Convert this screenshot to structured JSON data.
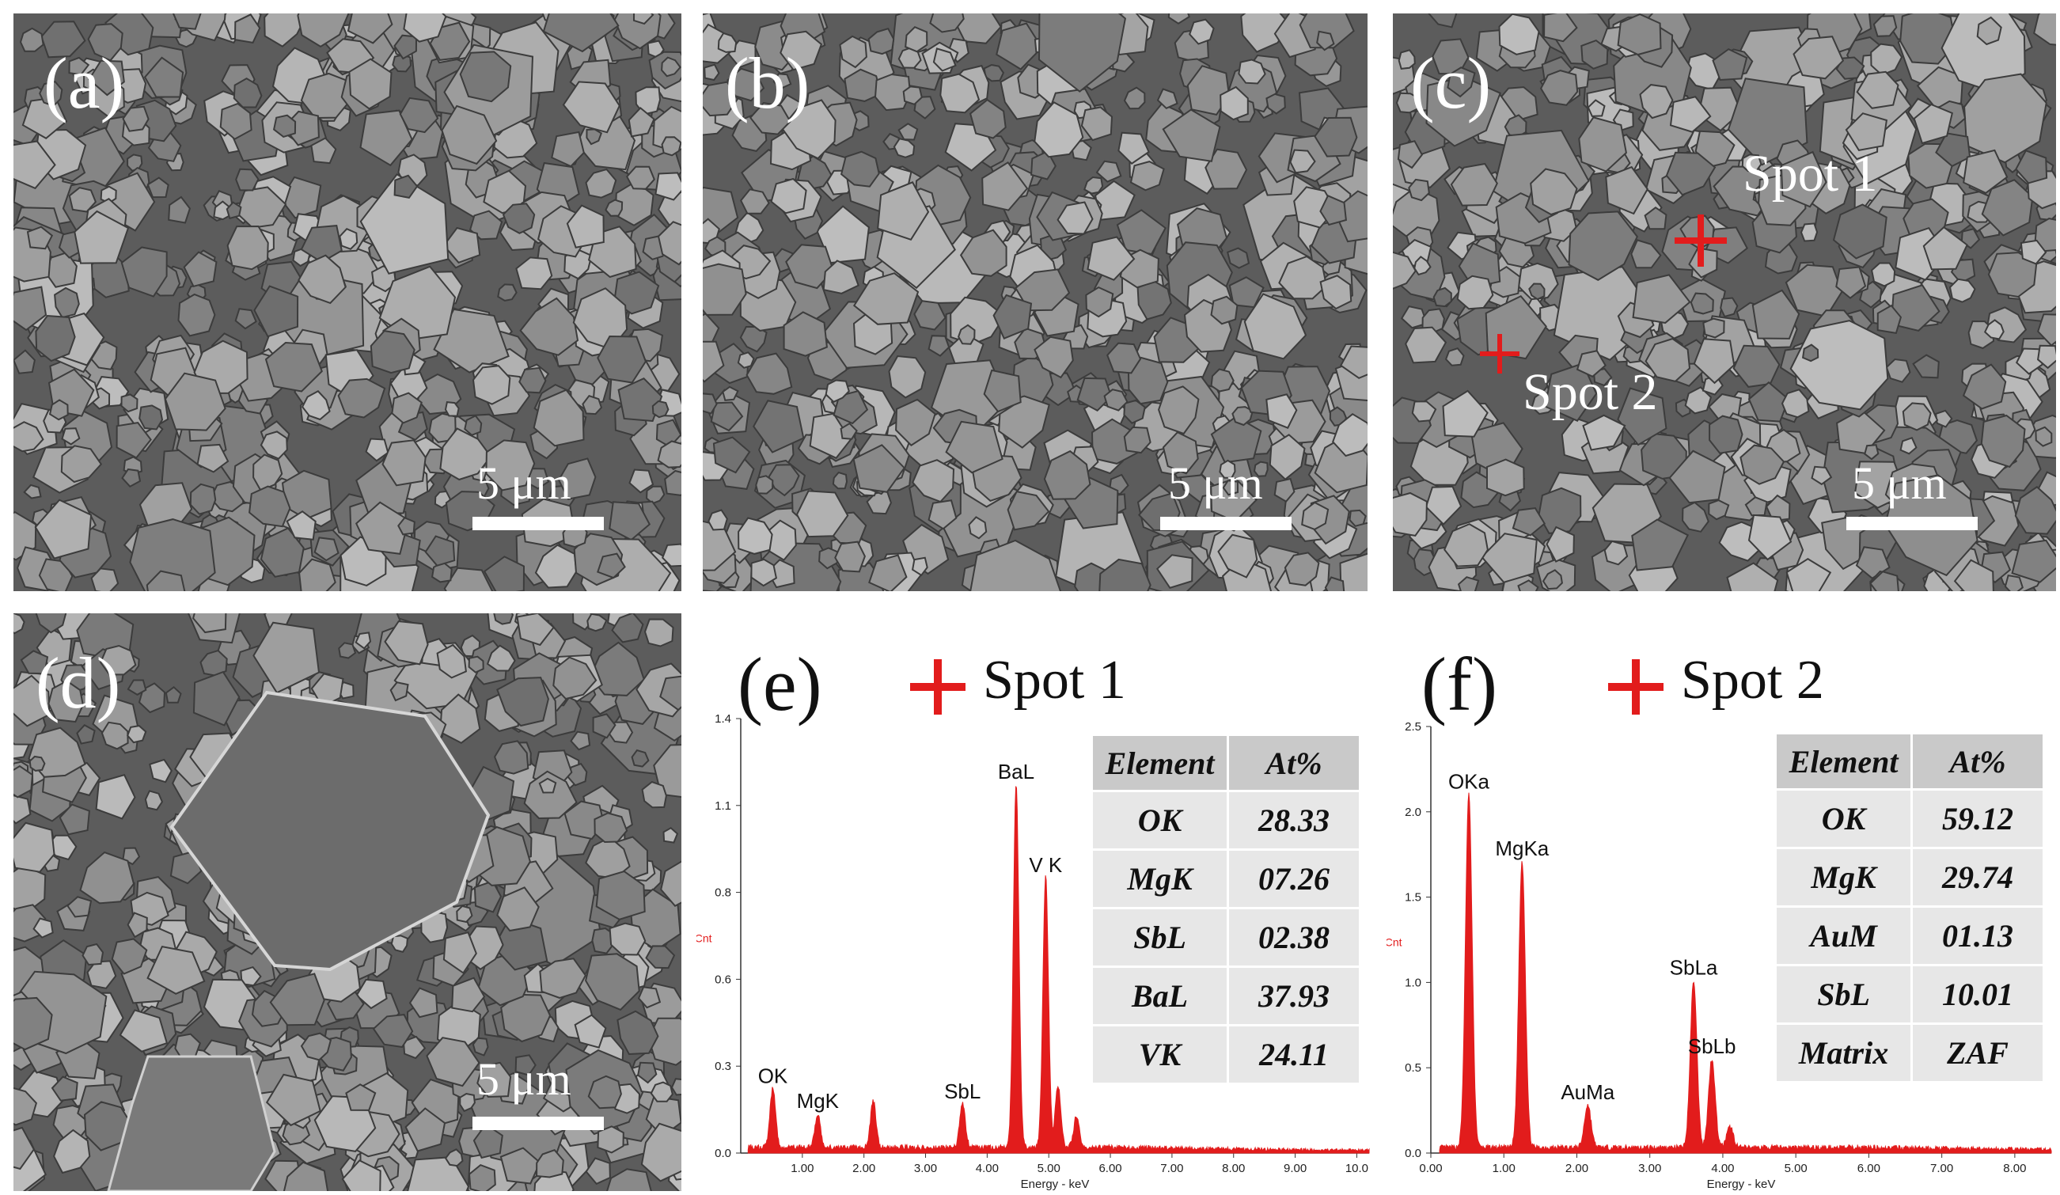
{
  "panels": {
    "a": {
      "label": "(a)",
      "scale": "5 μm"
    },
    "b": {
      "label": "(b)",
      "scale": "5 μm"
    },
    "c": {
      "label": "(c)",
      "scale": "5 μm",
      "spot1": "Spot 1",
      "spot2": "Spot 2"
    },
    "d": {
      "label": "(d)",
      "scale": "5 μm"
    }
  },
  "eds_e": {
    "label": "(e)",
    "spot": "Spot 1",
    "table": {
      "headers": [
        "Element",
        "At%"
      ],
      "rows": [
        [
          "OK",
          "28.33"
        ],
        [
          "MgK",
          "07.26"
        ],
        [
          "SbL",
          "02.38"
        ],
        [
          "BaL",
          "37.93"
        ],
        [
          "VK",
          "24.11"
        ]
      ]
    },
    "chart_data": {
      "type": "line",
      "xlabel": "Energy - keV",
      "ylabel": "KCnt",
      "xlim": [
        0,
        10.2
      ],
      "ylim": [
        0,
        1.4
      ],
      "xticks": [
        "1.00",
        "2.00",
        "3.00",
        "4.00",
        "5.00",
        "6.00",
        "7.00",
        "8.00",
        "9.00",
        "10.0"
      ],
      "yticks": [
        "0.0",
        "0.3",
        "0.6",
        "0.8",
        "1.1",
        "1.4"
      ],
      "peaks": [
        {
          "label": "OK",
          "x": 0.52,
          "y": 0.19
        },
        {
          "label": "MgK",
          "x": 1.25,
          "y": 0.11
        },
        {
          "label": "",
          "x": 2.15,
          "y": 0.15
        },
        {
          "label": "SbL",
          "x": 3.6,
          "y": 0.14
        },
        {
          "label": "BaL",
          "x": 4.47,
          "y": 1.17
        },
        {
          "label": "V K",
          "x": 4.95,
          "y": 0.87
        },
        {
          "label": "",
          "x": 5.15,
          "y": 0.2
        },
        {
          "label": "",
          "x": 5.45,
          "y": 0.1
        }
      ]
    }
  },
  "eds_f": {
    "label": "(f)",
    "spot": "Spot 2",
    "table": {
      "headers": [
        "Element",
        "At%"
      ],
      "rows": [
        [
          "OK",
          "59.12"
        ],
        [
          "MgK",
          "29.74"
        ],
        [
          "AuM",
          "01.13"
        ],
        [
          "SbL",
          "10.01"
        ],
        [
          "Matrix",
          "ZAF"
        ]
      ]
    },
    "chart_data": {
      "type": "line",
      "xlabel": "Energy - keV",
      "ylabel": "KCnt",
      "xlim": [
        0,
        8.5
      ],
      "ylim": [
        0,
        2.5
      ],
      "xticks": [
        "0.00",
        "1.00",
        "2.00",
        "3.00",
        "4.00",
        "5.00",
        "6.00",
        "7.00",
        "8.00"
      ],
      "yticks": [
        "0.0",
        "0.5",
        "1.0",
        "1.5",
        "2.0",
        "2.5"
      ],
      "peaks": [
        {
          "label": "OKa",
          "x": 0.52,
          "y": 2.07
        },
        {
          "label": "MgKa",
          "x": 1.25,
          "y": 1.68
        },
        {
          "label": "AuMa",
          "x": 2.15,
          "y": 0.25
        },
        {
          "label": "SbLa",
          "x": 3.6,
          "y": 0.98
        },
        {
          "label": "SbLb",
          "x": 3.85,
          "y": 0.52
        },
        {
          "label": "",
          "x": 4.1,
          "y": 0.12
        }
      ]
    }
  }
}
